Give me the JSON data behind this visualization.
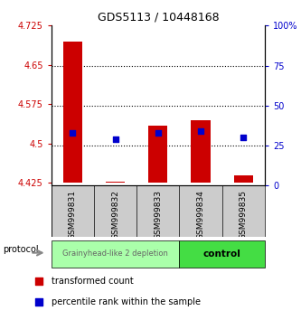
{
  "title": "GDS5113 / 10448168",
  "samples": [
    "GSM999831",
    "GSM999832",
    "GSM999833",
    "GSM999834",
    "GSM999835"
  ],
  "bar_bottoms": [
    4.425,
    4.425,
    4.425,
    4.425,
    4.425
  ],
  "bar_tops": [
    4.695,
    4.428,
    4.535,
    4.545,
    4.44
  ],
  "percentile_right": [
    33,
    29,
    33,
    34,
    30
  ],
  "ylim_left": [
    4.42,
    4.725
  ],
  "ylim_right": [
    0,
    100
  ],
  "yticks_left": [
    4.425,
    4.5,
    4.575,
    4.65,
    4.725
  ],
  "yticks_right": [
    0,
    25,
    50,
    75,
    100
  ],
  "bar_color": "#cc0000",
  "percentile_color": "#0000cc",
  "group1_label": "Grainyhead-like 2 depletion",
  "group2_label": "control",
  "group1_color": "#aaffaa",
  "group2_color": "#44dd44",
  "group1_count": 3,
  "group2_count": 2,
  "protocol_label": "protocol",
  "legend_bar_label": "transformed count",
  "legend_pct_label": "percentile rank within the sample",
  "background_color": "#ffffff",
  "sample_bg": "#cccccc"
}
